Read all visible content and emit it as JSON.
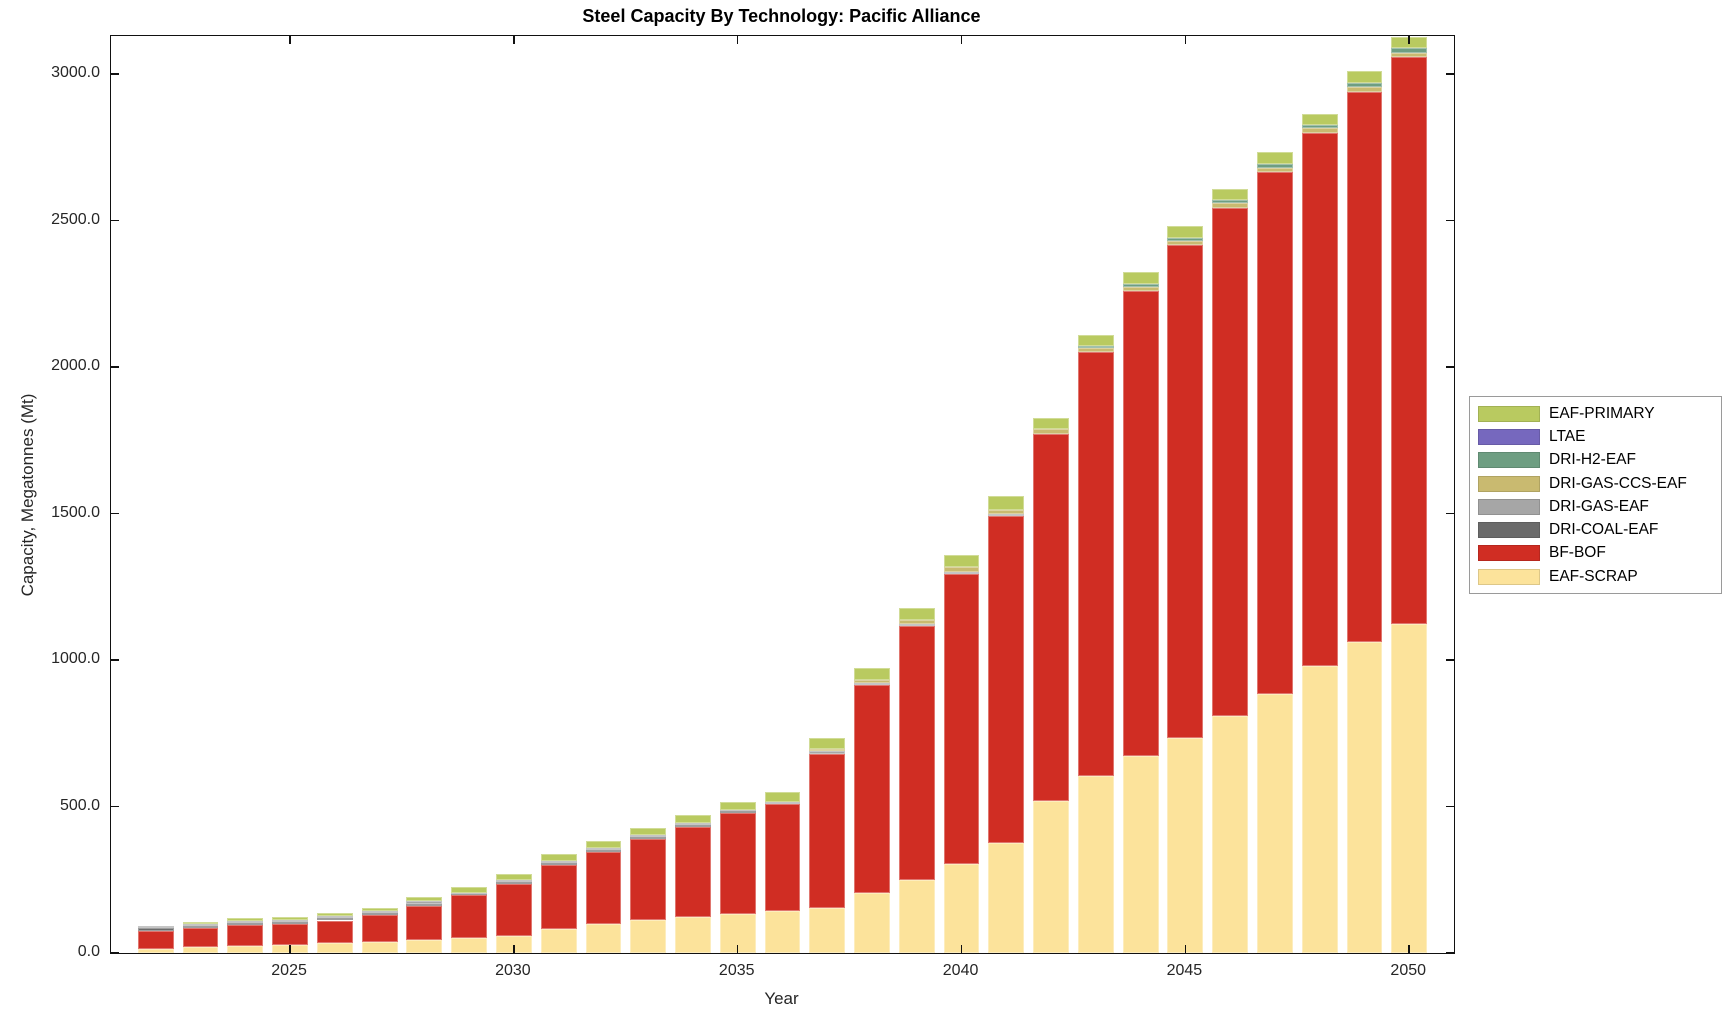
{
  "chart_data": {
    "type": "bar",
    "stacked": true,
    "title": "Steel Capacity By Technology: Pacific Alliance",
    "xlabel": "Year",
    "ylabel": "Capacity, Megatonnes (Mt)",
    "xlim": [
      2021,
      2051
    ],
    "ylim": [
      0,
      3130
    ],
    "grid": false,
    "legend_position": "right-outside",
    "bar_width_fraction": 0.8,
    "years": [
      2022,
      2023,
      2024,
      2025,
      2026,
      2027,
      2028,
      2029,
      2030,
      2031,
      2032,
      2033,
      2034,
      2035,
      2036,
      2037,
      2038,
      2039,
      2040,
      2041,
      2042,
      2043,
      2044,
      2045,
      2046,
      2047,
      2048,
      2049,
      2050
    ],
    "xticks": [
      2025,
      2030,
      2035,
      2040,
      2045,
      2050
    ],
    "yticks": [
      0,
      500,
      1000,
      1500,
      2000,
      2500,
      3000
    ],
    "ytick_labels": [
      "0.0",
      "500.0",
      "1000.0",
      "1500.0",
      "2000.0",
      "2500.0",
      "3000.0"
    ],
    "series": [
      {
        "name": "EAF-SCRAP",
        "color": "#fce39b",
        "values": [
          14,
          21,
          24,
          27,
          33,
          39,
          43,
          51,
          57,
          83,
          99,
          113,
          124,
          134,
          142,
          153,
          206,
          249,
          305,
          376,
          519,
          604,
          672,
          735,
          809,
          883,
          980,
          1062,
          1122
        ]
      },
      {
        "name": "BF-BOF",
        "color": "#d02d23",
        "values": [
          60,
          65,
          72,
          73,
          78,
          90,
          118,
          146,
          177,
          217,
          245,
          275,
          306,
          344,
          366,
          528,
          709,
          868,
          988,
          1116,
          1252,
          1446,
          1587,
          1682,
          1735,
          1782,
          1819,
          1878,
          1937
        ]
      },
      {
        "name": "DRI-COAL-EAF",
        "color": "#6b6b6b",
        "values": [
          10,
          7,
          7,
          7,
          7,
          7,
          7,
          4,
          7,
          7,
          7,
          7,
          8,
          6,
          0,
          0,
          0,
          0,
          0,
          0,
          0,
          0,
          0,
          0,
          0,
          0,
          0,
          0,
          0
        ]
      },
      {
        "name": "DRI-GAS-EAF",
        "color": "#a6a6a6",
        "values": [
          7,
          7,
          7,
          7,
          7,
          8,
          9,
          5,
          7,
          7,
          7,
          7,
          7,
          5,
          7,
          7,
          7,
          7,
          9,
          7,
          0,
          0,
          0,
          0,
          0,
          0,
          0,
          0,
          0
        ]
      },
      {
        "name": "DRI-GAS-CCS-EAF",
        "color": "#c9ba70",
        "values": [
          0,
          0,
          0,
          0,
          0,
          0,
          0,
          0,
          0,
          0,
          0,
          0,
          0,
          0,
          0,
          9,
          11,
          12,
          16,
          12,
          19,
          14,
          16,
          14,
          15,
          16,
          17,
          17,
          14
        ]
      },
      {
        "name": "DRI-H2-EAF",
        "color": "#6e9e82",
        "values": [
          0,
          0,
          0,
          0,
          0,
          0,
          0,
          0,
          0,
          0,
          0,
          0,
          0,
          0,
          0,
          0,
          0,
          0,
          0,
          0,
          0,
          9,
          9,
          9,
          10,
          12,
          11,
          14,
          17
        ]
      },
      {
        "name": "LTAE",
        "color": "#7668be",
        "values": [
          0,
          0,
          0,
          0,
          0,
          0,
          0,
          0,
          0,
          0,
          0,
          0,
          0,
          0,
          0,
          0,
          0,
          0,
          0,
          0,
          0,
          0,
          0,
          0,
          0,
          0,
          0,
          0,
          0
        ]
      },
      {
        "name": "EAF-PRIMARY",
        "color": "#b9ca60",
        "values": [
          0,
          7,
          9,
          10,
          10,
          11,
          14,
          20,
          21,
          23,
          25,
          25,
          27,
          27,
          35,
          38,
          40,
          43,
          41,
          50,
          37,
          38,
          41,
          42,
          40,
          40,
          36,
          38,
          37
        ]
      }
    ],
    "legend_order_top_to_bottom": [
      "EAF-PRIMARY",
      "LTAE",
      "DRI-H2-EAF",
      "DRI-GAS-CCS-EAF",
      "DRI-GAS-EAF",
      "DRI-COAL-EAF",
      "BF-BOF",
      "EAF-SCRAP"
    ],
    "axis_color": "#111111",
    "tick_label_color": "#262626"
  }
}
